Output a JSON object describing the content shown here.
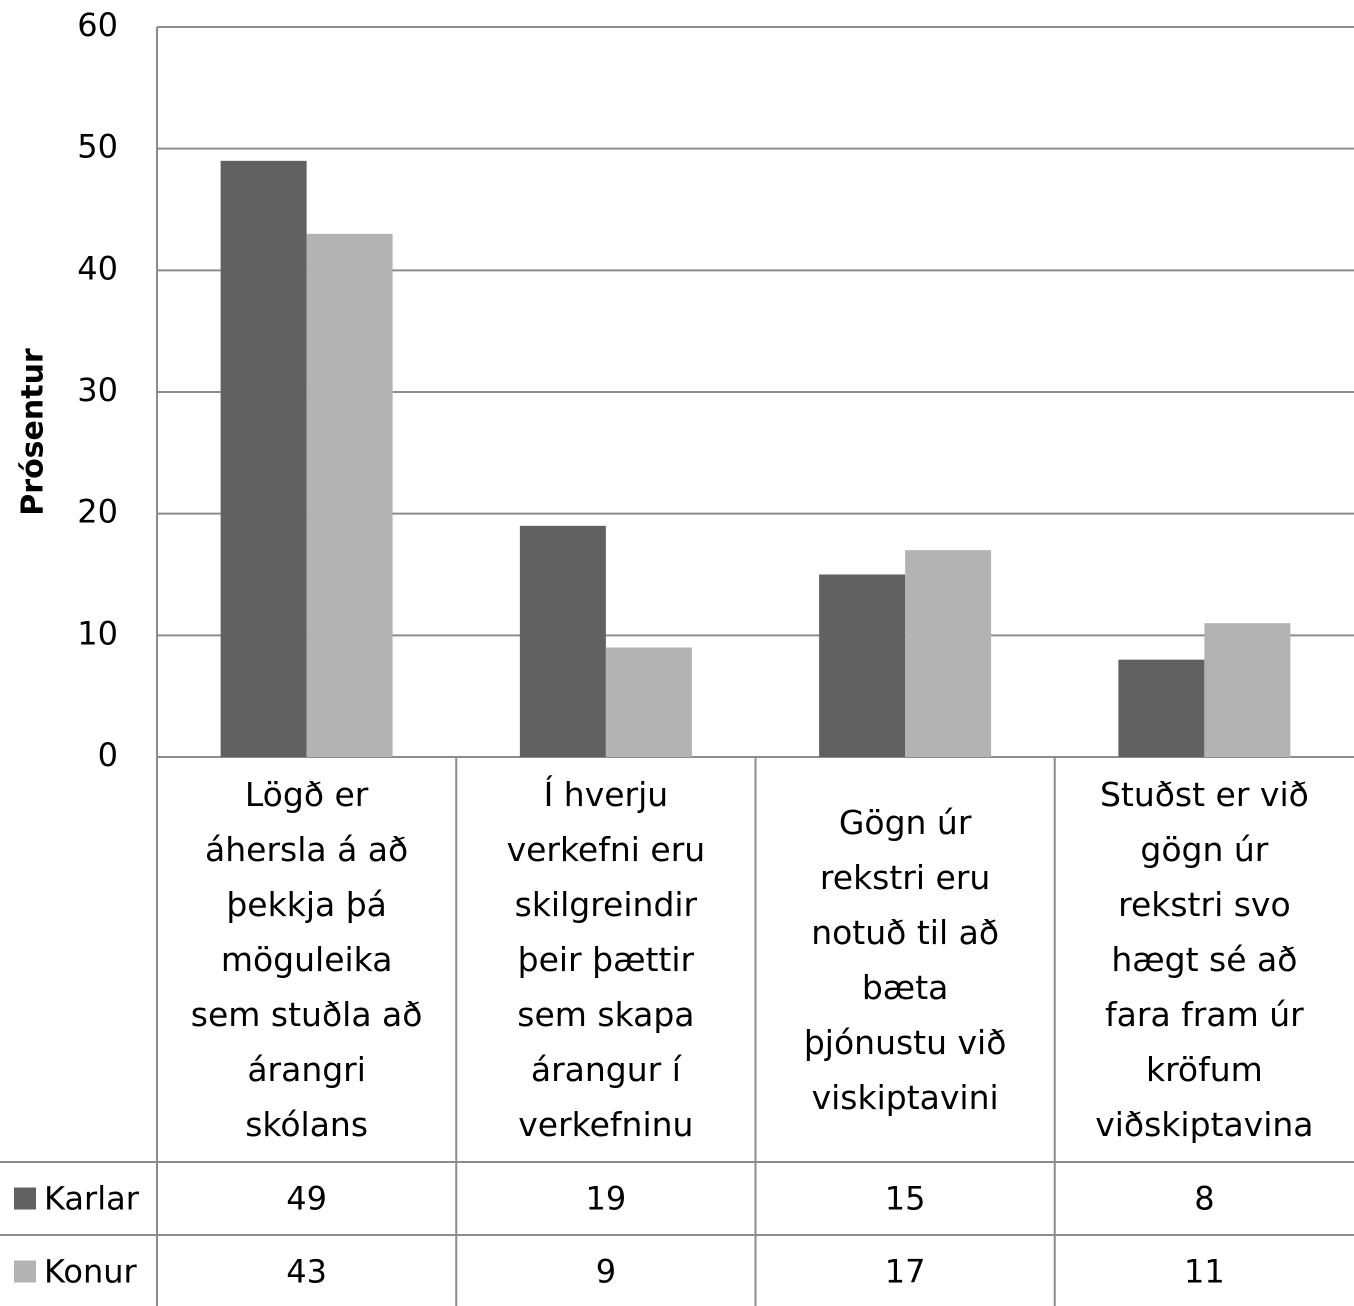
{
  "chart_data": {
    "type": "bar",
    "y_label": "Prósentur",
    "categories": [
      "Lögð er áhersla á að þekkja þá möguleika sem stuðla að árangri skólans",
      "Í hverju verkefni eru skilgreindir þeir þættir sem skapa árangur í verkefninu",
      "Gögn úr rekstri eru notuð til að bæta þjónustu við viskiptavini",
      "Stuðst er við gögn úr rekstri svo hægt sé að fara fram úr kröfum viðskiptavina"
    ],
    "series": [
      {
        "name": "Karlar",
        "color": "#616161",
        "values": [
          49,
          19,
          15,
          8
        ]
      },
      {
        "name": "Konur",
        "color": "#b3b3b3",
        "values": [
          43,
          9,
          17,
          11
        ]
      }
    ],
    "ylim": [
      0,
      60
    ],
    "yticks": [
      0,
      10,
      20,
      30,
      40,
      50,
      60
    ],
    "grid": true,
    "data_table": true
  }
}
